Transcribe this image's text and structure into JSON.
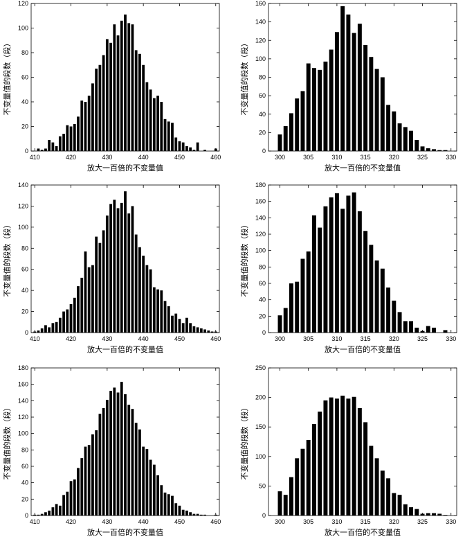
{
  "chart_data": [
    {
      "type": "bar",
      "title": "",
      "xlabel": "放大一百倍的不变量值",
      "ylabel": "不变量值的段数（段）",
      "xlim": [
        409,
        461
      ],
      "ylim": [
        0,
        120
      ],
      "xticks": [
        410,
        420,
        430,
        440,
        450,
        460
      ],
      "yticks": [
        0,
        20,
        40,
        60,
        80,
        100,
        120
      ],
      "x": [
        410,
        411,
        412,
        413,
        414,
        415,
        416,
        417,
        418,
        419,
        420,
        421,
        422,
        423,
        424,
        425,
        426,
        427,
        428,
        429,
        430,
        431,
        432,
        433,
        434,
        435,
        436,
        437,
        438,
        439,
        440,
        441,
        442,
        443,
        444,
        445,
        446,
        447,
        448,
        449,
        450,
        451,
        452,
        453,
        454,
        455,
        456,
        457,
        458,
        459,
        460
      ],
      "values": [
        0,
        2,
        1,
        2,
        9,
        7,
        4,
        12,
        14,
        21,
        20,
        22,
        28,
        41,
        40,
        45,
        55,
        67,
        70,
        78,
        91,
        88,
        103,
        94,
        106,
        111,
        104,
        103,
        82,
        79,
        70,
        56,
        50,
        43,
        45,
        40,
        26,
        24,
        23,
        11,
        8,
        7,
        4,
        3,
        1,
        7,
        0,
        1,
        0,
        0,
        2
      ]
    },
    {
      "type": "bar",
      "title": "",
      "xlabel": "放大一百倍的不变量值",
      "ylabel": "不变量值的段数（段）",
      "xlim": [
        298,
        331
      ],
      "ylim": [
        0,
        160
      ],
      "xticks": [
        300,
        305,
        310,
        315,
        320,
        325,
        330
      ],
      "yticks": [
        0,
        20,
        40,
        60,
        80,
        100,
        120,
        140,
        160
      ],
      "x": [
        300,
        301,
        302,
        303,
        304,
        305,
        306,
        307,
        308,
        309,
        310,
        311,
        312,
        313,
        314,
        315,
        316,
        317,
        318,
        319,
        320,
        321,
        322,
        323,
        324,
        325,
        326,
        327,
        328,
        329
      ],
      "values": [
        18,
        27,
        41,
        57,
        65,
        95,
        90,
        88,
        97,
        110,
        129,
        157,
        148,
        128,
        138,
        115,
        102,
        89,
        80,
        50,
        43,
        30,
        26,
        22,
        12,
        5,
        3,
        2,
        1,
        1
      ]
    },
    {
      "type": "bar",
      "title": "",
      "xlabel": "放大一百倍的不变量值",
      "ylabel": "不变量值的段数（段）",
      "xlim": [
        409,
        461
      ],
      "ylim": [
        0,
        140
      ],
      "xticks": [
        410,
        420,
        430,
        440,
        450,
        460
      ],
      "yticks": [
        0,
        20,
        40,
        60,
        80,
        100,
        120,
        140
      ],
      "x": [
        410,
        411,
        412,
        413,
        414,
        415,
        416,
        417,
        418,
        419,
        420,
        421,
        422,
        423,
        424,
        425,
        426,
        427,
        428,
        429,
        430,
        431,
        432,
        433,
        434,
        435,
        436,
        437,
        438,
        439,
        440,
        441,
        442,
        443,
        444,
        445,
        446,
        447,
        448,
        449,
        450,
        451,
        452,
        453,
        454,
        455,
        456,
        457,
        458,
        459,
        460
      ],
      "values": [
        1,
        2,
        4,
        7,
        5,
        9,
        10,
        14,
        20,
        22,
        27,
        33,
        44,
        52,
        77,
        62,
        64,
        91,
        85,
        97,
        111,
        122,
        126,
        118,
        123,
        134,
        113,
        120,
        93,
        81,
        73,
        64,
        60,
        43,
        41,
        40,
        30,
        25,
        16,
        18,
        13,
        9,
        14,
        9,
        6,
        5,
        4,
        3,
        2,
        1,
        1
      ]
    },
    {
      "type": "bar",
      "title": "",
      "xlabel": "放大一百倍的不变量值",
      "ylabel": "不变量值的段数（段）",
      "xlim": [
        298,
        331
      ],
      "ylim": [
        0,
        180
      ],
      "xticks": [
        300,
        305,
        310,
        315,
        320,
        325,
        330
      ],
      "yticks": [
        0,
        20,
        40,
        60,
        80,
        100,
        120,
        140,
        160,
        180
      ],
      "x": [
        300,
        301,
        302,
        303,
        304,
        305,
        306,
        307,
        308,
        309,
        310,
        311,
        312,
        313,
        314,
        315,
        316,
        317,
        318,
        319,
        320,
        321,
        322,
        323,
        324,
        325,
        326,
        327,
        328,
        329
      ],
      "values": [
        21,
        30,
        60,
        62,
        90,
        99,
        143,
        128,
        154,
        165,
        170,
        151,
        167,
        171,
        148,
        124,
        107,
        88,
        78,
        55,
        39,
        25,
        14,
        14,
        6,
        2,
        8,
        6,
        0,
        3
      ]
    },
    {
      "type": "bar",
      "title": "",
      "xlabel": "放大一百倍的不变量值",
      "ylabel": "不变量值的段数（段）",
      "xlim": [
        409,
        461
      ],
      "ylim": [
        0,
        180
      ],
      "xticks": [
        410,
        420,
        430,
        440,
        450,
        460
      ],
      "yticks": [
        0,
        20,
        40,
        60,
        80,
        100,
        120,
        140,
        160,
        180
      ],
      "x": [
        410,
        411,
        412,
        413,
        414,
        415,
        416,
        417,
        418,
        419,
        420,
        421,
        422,
        423,
        424,
        425,
        426,
        427,
        428,
        429,
        430,
        431,
        432,
        433,
        434,
        435,
        436,
        437,
        438,
        439,
        440,
        441,
        442,
        443,
        444,
        445,
        446,
        447,
        448,
        449,
        450,
        451,
        452,
        453,
        454,
        455,
        456,
        457,
        458,
        459,
        460
      ],
      "values": [
        1,
        1,
        2,
        4,
        6,
        10,
        14,
        12,
        25,
        29,
        42,
        44,
        58,
        70,
        84,
        86,
        99,
        104,
        124,
        131,
        141,
        152,
        156,
        150,
        163,
        148,
        135,
        130,
        113,
        105,
        84,
        81,
        68,
        62,
        49,
        37,
        28,
        26,
        24,
        15,
        12,
        7,
        6,
        4,
        2,
        2,
        1,
        1,
        0,
        0,
        1
      ]
    },
    {
      "type": "bar",
      "title": "",
      "xlabel": "放大一百倍的不变量值",
      "ylabel": "不变量值的段数（段）",
      "xlim": [
        298,
        331
      ],
      "ylim": [
        0,
        250
      ],
      "xticks": [
        300,
        305,
        310,
        315,
        320,
        325,
        330
      ],
      "yticks": [
        0,
        50,
        100,
        150,
        200,
        250
      ],
      "x": [
        300,
        301,
        302,
        303,
        304,
        305,
        306,
        307,
        308,
        309,
        310,
        311,
        312,
        313,
        314,
        315,
        316,
        317,
        318,
        319,
        320,
        321,
        322,
        323,
        324,
        325,
        326,
        327,
        328,
        329
      ],
      "values": [
        41,
        35,
        65,
        97,
        113,
        128,
        155,
        176,
        195,
        200,
        198,
        203,
        198,
        201,
        182,
        158,
        118,
        97,
        76,
        63,
        38,
        35,
        19,
        14,
        11,
        3,
        4,
        4,
        3,
        1
      ]
    }
  ]
}
